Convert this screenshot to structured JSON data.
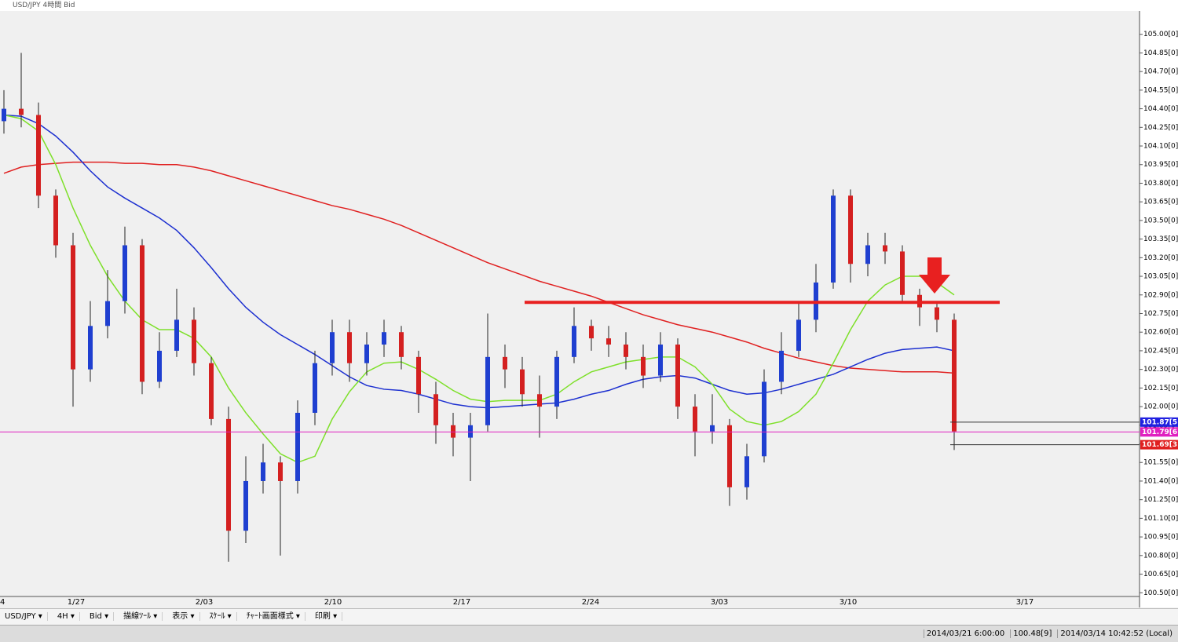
{
  "window": {
    "title": "USD/JPY 4時間 Bid"
  },
  "toolbar": {
    "items": [
      "USD/JPY ▾",
      "4H ▾",
      "Bid ▾",
      "描線ﾂｰﾙ ▾",
      "表示 ▾",
      "ｽｹｰﾙ ▾",
      "ﾁｬｰﾄ画面様式 ▾",
      "印刷 ▾"
    ]
  },
  "status": {
    "items": [
      "2014/03/21 6:00:00",
      "100.48[9]",
      "2014/03/14 10:42:52 (Local)"
    ]
  },
  "chart_data": {
    "type": "candlestick",
    "up_color": "#1f3fd0",
    "down_color": "#d42020",
    "ylim": [
      100.47,
      105.15
    ],
    "yticks": [
      {
        "value": 105.0,
        "label": "105.00[0]"
      },
      {
        "value": 104.85,
        "label": "104.85[0]"
      },
      {
        "value": 104.7,
        "label": "104.70[0]"
      },
      {
        "value": 104.55,
        "label": "104.55[0]"
      },
      {
        "value": 104.4,
        "label": "104.40[0]"
      },
      {
        "value": 104.25,
        "label": "104.25[0]"
      },
      {
        "value": 104.1,
        "label": "104.10[0]"
      },
      {
        "value": 103.95,
        "label": "103.95[0]"
      },
      {
        "value": 103.8,
        "label": "103.80[0]"
      },
      {
        "value": 103.65,
        "label": "103.65[0]"
      },
      {
        "value": 103.5,
        "label": "103.50[0]"
      },
      {
        "value": 103.35,
        "label": "103.35[0]"
      },
      {
        "value": 103.2,
        "label": "103.20[0]"
      },
      {
        "value": 103.05,
        "label": "103.05[0]"
      },
      {
        "value": 102.9,
        "label": "102.90[0]"
      },
      {
        "value": 102.75,
        "label": "102.75[0]"
      },
      {
        "value": 102.6,
        "label": "102.60[0]"
      },
      {
        "value": 102.45,
        "label": "102.45[0]"
      },
      {
        "value": 102.3,
        "label": "102.30[0]"
      },
      {
        "value": 102.15,
        "label": "102.15[0]"
      },
      {
        "value": 102.0,
        "label": "102.00[0]"
      },
      {
        "value": 101.85,
        "label": "101.85[0]"
      },
      {
        "value": 101.7,
        "label": "101.70[0]"
      },
      {
        "value": 101.55,
        "label": "101.55[0]"
      },
      {
        "value": 101.4,
        "label": "101.40[0]"
      },
      {
        "value": 101.25,
        "label": "101.25[0]"
      },
      {
        "value": 101.1,
        "label": "101.10[0]"
      },
      {
        "value": 100.95,
        "label": "100.95[0]"
      },
      {
        "value": 100.8,
        "label": "100.80[0]"
      },
      {
        "value": 100.65,
        "label": "100.65[0]"
      },
      {
        "value": 100.5,
        "label": "100.50[0]"
      }
    ],
    "date_labels": [
      "4",
      "1/27",
      "2/03",
      "2/10",
      "2/17",
      "2/24",
      "3/03",
      "3/10",
      "3/17"
    ],
    "ohlc": [
      [
        104.3,
        104.55,
        104.2,
        104.4
      ],
      [
        104.4,
        104.85,
        104.25,
        104.35
      ],
      [
        104.35,
        104.45,
        103.6,
        103.7
      ],
      [
        103.7,
        103.75,
        103.2,
        103.3
      ],
      [
        103.3,
        103.4,
        102.0,
        102.3
      ],
      [
        102.3,
        102.85,
        102.2,
        102.65
      ],
      [
        102.65,
        103.1,
        102.55,
        102.85
      ],
      [
        102.85,
        103.45,
        102.75,
        103.3
      ],
      [
        103.3,
        103.35,
        102.1,
        102.2
      ],
      [
        102.2,
        102.6,
        102.15,
        102.45
      ],
      [
        102.45,
        102.95,
        102.4,
        102.7
      ],
      [
        102.7,
        102.8,
        102.25,
        102.35
      ],
      [
        102.35,
        102.4,
        101.85,
        101.9
      ],
      [
        101.9,
        102.0,
        100.75,
        101.0
      ],
      [
        101.0,
        101.6,
        100.9,
        101.4
      ],
      [
        101.4,
        101.7,
        101.3,
        101.55
      ],
      [
        101.55,
        101.6,
        100.8,
        101.4
      ],
      [
        101.4,
        102.05,
        101.3,
        101.95
      ],
      [
        101.95,
        102.45,
        101.85,
        102.35
      ],
      [
        102.35,
        102.7,
        102.25,
        102.6
      ],
      [
        102.6,
        102.7,
        102.2,
        102.35
      ],
      [
        102.35,
        102.6,
        102.25,
        102.5
      ],
      [
        102.5,
        102.7,
        102.4,
        102.6
      ],
      [
        102.6,
        102.65,
        102.3,
        102.4
      ],
      [
        102.4,
        102.45,
        101.95,
        102.1
      ],
      [
        102.1,
        102.2,
        101.7,
        101.85
      ],
      [
        101.85,
        101.95,
        101.6,
        101.75
      ],
      [
        101.75,
        101.95,
        101.4,
        101.85
      ],
      [
        101.85,
        102.75,
        101.8,
        102.4
      ],
      [
        102.4,
        102.5,
        102.15,
        102.3
      ],
      [
        102.3,
        102.4,
        102.0,
        102.1
      ],
      [
        102.1,
        102.25,
        101.75,
        102.0
      ],
      [
        102.0,
        102.45,
        101.9,
        102.4
      ],
      [
        102.4,
        102.8,
        102.35,
        102.65
      ],
      [
        102.65,
        102.7,
        102.45,
        102.55
      ],
      [
        102.55,
        102.65,
        102.4,
        102.5
      ],
      [
        102.5,
        102.6,
        102.3,
        102.4
      ],
      [
        102.4,
        102.5,
        102.15,
        102.25
      ],
      [
        102.25,
        102.6,
        102.2,
        102.5
      ],
      [
        102.5,
        102.55,
        101.9,
        102.0
      ],
      [
        102.0,
        102.1,
        101.6,
        101.8
      ],
      [
        101.8,
        102.1,
        101.7,
        101.85
      ],
      [
        101.85,
        101.9,
        101.2,
        101.35
      ],
      [
        101.35,
        101.7,
        101.25,
        101.6
      ],
      [
        101.6,
        102.3,
        101.55,
        102.2
      ],
      [
        102.2,
        102.6,
        102.1,
        102.45
      ],
      [
        102.45,
        102.85,
        102.4,
        102.7
      ],
      [
        102.7,
        103.15,
        102.6,
        103.0
      ],
      [
        103.0,
        103.75,
        102.95,
        103.7
      ],
      [
        103.7,
        103.75,
        103.0,
        103.15
      ],
      [
        103.15,
        103.4,
        103.05,
        103.3
      ],
      [
        103.3,
        103.4,
        103.15,
        103.25
      ],
      [
        103.25,
        103.3,
        102.85,
        102.9
      ],
      [
        102.9,
        102.95,
        102.65,
        102.8
      ],
      [
        102.8,
        102.85,
        102.6,
        102.7
      ],
      [
        102.7,
        102.75,
        101.65,
        101.8
      ]
    ],
    "series": [
      {
        "color": "#e02020",
        "values": [
          103.88,
          103.93,
          103.95,
          103.96,
          103.97,
          103.97,
          103.97,
          103.96,
          103.96,
          103.95,
          103.95,
          103.93,
          103.9,
          103.86,
          103.82,
          103.78,
          103.74,
          103.7,
          103.66,
          103.62,
          103.59,
          103.55,
          103.51,
          103.46,
          103.4,
          103.34,
          103.28,
          103.22,
          103.16,
          103.11,
          103.06,
          103.01,
          102.97,
          102.93,
          102.89,
          102.84,
          102.79,
          102.74,
          102.7,
          102.66,
          102.63,
          102.6,
          102.56,
          102.52,
          102.47,
          102.43,
          102.39,
          102.36,
          102.33,
          102.31,
          102.3,
          102.29,
          102.28,
          102.28,
          102.28,
          102.27
        ]
      },
      {
        "color": "#1c2fd0",
        "values": [
          104.35,
          104.34,
          104.28,
          104.18,
          104.05,
          103.9,
          103.77,
          103.68,
          103.6,
          103.52,
          103.42,
          103.28,
          103.12,
          102.95,
          102.8,
          102.68,
          102.58,
          102.5,
          102.42,
          102.33,
          102.24,
          102.17,
          102.14,
          102.13,
          102.1,
          102.06,
          102.02,
          102.0,
          101.99,
          102.0,
          102.01,
          102.02,
          102.03,
          102.06,
          102.1,
          102.13,
          102.18,
          102.22,
          102.24,
          102.25,
          102.23,
          102.18,
          102.13,
          102.1,
          102.11,
          102.14,
          102.18,
          102.22,
          102.26,
          102.32,
          102.38,
          102.43,
          102.46,
          102.47,
          102.48,
          102.45
        ]
      },
      {
        "color": "#7ee02a",
        "values": [
          104.35,
          104.32,
          104.22,
          103.95,
          103.6,
          103.3,
          103.05,
          102.85,
          102.7,
          102.62,
          102.62,
          102.55,
          102.4,
          102.15,
          101.95,
          101.78,
          101.62,
          101.55,
          101.6,
          101.9,
          102.12,
          102.28,
          102.35,
          102.36,
          102.3,
          102.22,
          102.13,
          102.06,
          102.04,
          102.05,
          102.05,
          102.05,
          102.1,
          102.2,
          102.28,
          102.32,
          102.36,
          102.38,
          102.4,
          102.4,
          102.32,
          102.18,
          101.98,
          101.88,
          101.85,
          101.88,
          101.96,
          102.1,
          102.35,
          102.62,
          102.85,
          102.98,
          103.05,
          103.05,
          103.0,
          102.9
        ]
      }
    ],
    "annotation_line": 102.84,
    "price_tags": [
      {
        "value": 101.875,
        "label": "101.87[5",
        "color": "#2020e0"
      },
      {
        "value": 101.796,
        "label": "101.79[6",
        "color": "#e020c0"
      },
      {
        "value": 101.693,
        "label": "101.69[3",
        "color": "#e02020"
      }
    ]
  }
}
